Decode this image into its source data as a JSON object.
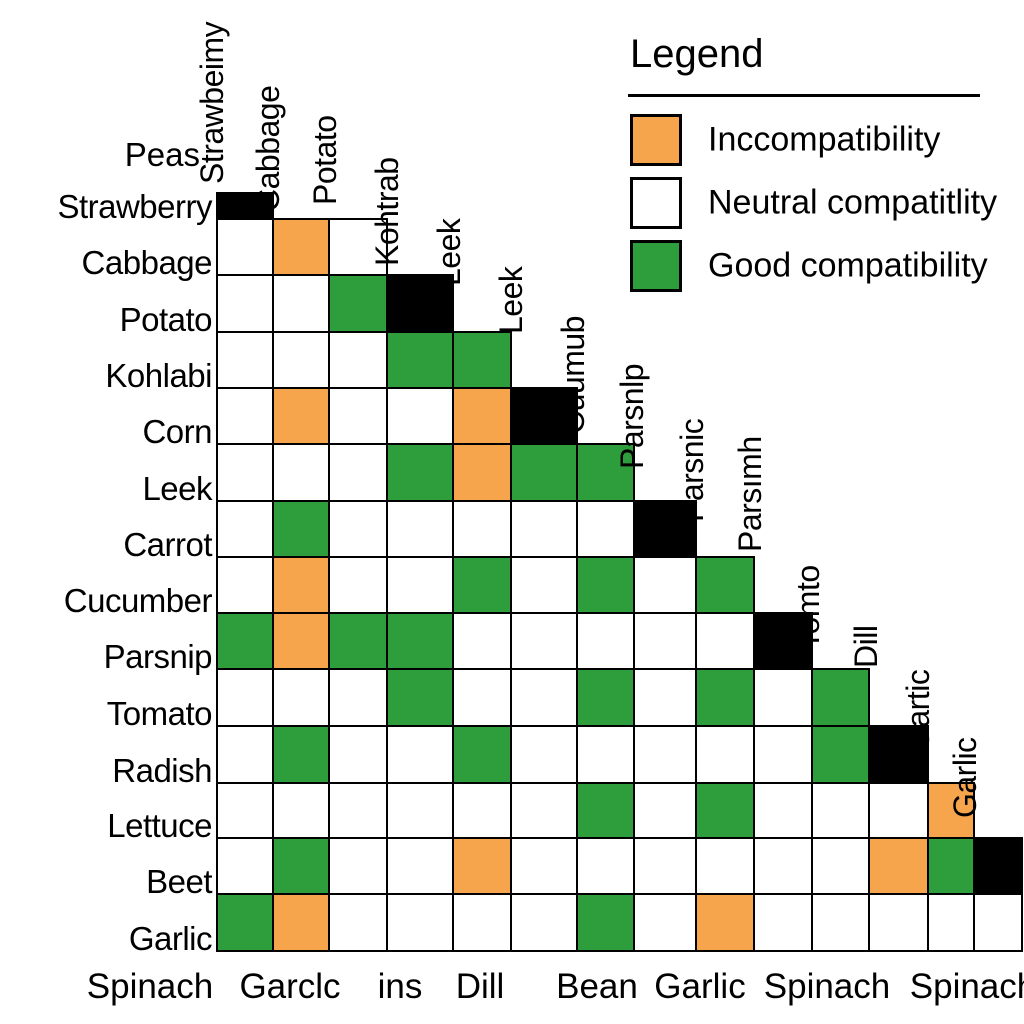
{
  "legend": {
    "title": "Legend",
    "items": [
      {
        "key": "incompatible",
        "label": "Inccompatibility",
        "color": "#F6A54C"
      },
      {
        "key": "neutral",
        "label": "Neutral compatitlity",
        "color": "#FFFFFF"
      },
      {
        "key": "good",
        "label": "Good compatibility",
        "color": "#2E9E3C"
      }
    ]
  },
  "chart_data": {
    "type": "heatmap",
    "subtype": "lower-triangular companion-planting compatibility matrix",
    "grid": "on",
    "top_left_label": "Peas",
    "row_labels": [
      "Strawberry",
      "Cabbage",
      "Potato",
      "Kohlabi",
      "Corn",
      "Leek",
      "Carrot",
      "Cucumber",
      "Parsnip",
      "Tomato",
      "Radish",
      "Lettuce",
      "Beet",
      "Garlic"
    ],
    "col_labels": [
      "Strawbeimy",
      "Cabbage",
      "Potato",
      "Kohtrab",
      "Leek",
      "Leek",
      "Cuumub",
      "Parsnlp",
      "Parsnic",
      "Parsımh",
      "Tomto",
      "Dill",
      "Gartic",
      "Garlic"
    ],
    "bottom_labels": [
      "Spinach",
      "Garclc",
      "ins",
      "Dill",
      "Bean",
      "Garlic",
      "Spinach",
      "Spinach"
    ],
    "cell_legend": {
      "W": "neutral",
      "O": "incompatible",
      "G": "good",
      "K": "diagonal"
    },
    "colors": {
      "W": "#FFFFFF",
      "O": "#F6A54C",
      "G": "#2E9E3C",
      "K": "#000000"
    },
    "rows": [
      {
        "label": "Strawberry",
        "cells": [
          "K"
        ]
      },
      {
        "label": "Cabbage",
        "cells": [
          "W",
          "O",
          "W"
        ]
      },
      {
        "label": "Potato",
        "cells": [
          "W",
          "W",
          "G",
          "K"
        ]
      },
      {
        "label": "Kohlabi",
        "cells": [
          "W",
          "W",
          "W",
          "G",
          "G"
        ]
      },
      {
        "label": "Corn",
        "cells": [
          "W",
          "O",
          "W",
          "W",
          "O",
          "K"
        ]
      },
      {
        "label": "Leek",
        "cells": [
          "W",
          "W",
          "W",
          "G",
          "O",
          "G",
          "G"
        ]
      },
      {
        "label": "Carrot",
        "cells": [
          "W",
          "G",
          "W",
          "W",
          "W",
          "W",
          "W",
          "K"
        ]
      },
      {
        "label": "Cucumber",
        "cells": [
          "W",
          "O",
          "W",
          "W",
          "G",
          "W",
          "G",
          "W",
          "G"
        ]
      },
      {
        "label": "Parsnip",
        "cells": [
          "G",
          "O",
          "G",
          "G",
          "W",
          "W",
          "W",
          "W",
          "W",
          "K"
        ]
      },
      {
        "label": "Tomato",
        "cells": [
          "W",
          "W",
          "W",
          "G",
          "W",
          "W",
          "G",
          "W",
          "G",
          "W",
          "G"
        ]
      },
      {
        "label": "Radish",
        "cells": [
          "W",
          "G",
          "W",
          "W",
          "G",
          "W",
          "W",
          "W",
          "W",
          "W",
          "G",
          "K"
        ]
      },
      {
        "label": "Lettuce",
        "cells": [
          "W",
          "W",
          "W",
          "W",
          "W",
          "W",
          "G",
          "W",
          "G",
          "W",
          "W",
          "W",
          "O"
        ]
      },
      {
        "label": "Beet",
        "cells": [
          "W",
          "G",
          "W",
          "W",
          "O",
          "W",
          "W",
          "W",
          "W",
          "W",
          "W",
          "O",
          "G",
          "K"
        ]
      },
      {
        "label": "Garlic",
        "cells": [
          "G",
          "O",
          "W",
          "W",
          "W",
          "W",
          "G",
          "W",
          "O",
          "W",
          "W",
          "W",
          "W",
          "W"
        ]
      }
    ]
  }
}
